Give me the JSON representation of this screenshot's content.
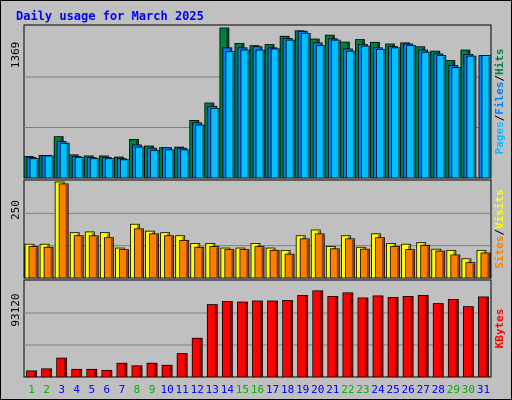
{
  "chart_data": {
    "type": "bar",
    "title": "Daily usage for March 2025",
    "days": [
      "1",
      "2",
      "3",
      "4",
      "5",
      "6",
      "7",
      "8",
      "9",
      "10",
      "11",
      "12",
      "13",
      "14",
      "15",
      "16",
      "17",
      "18",
      "19",
      "20",
      "21",
      "22",
      "23",
      "24",
      "25",
      "26",
      "27",
      "28",
      "29",
      "30",
      "31"
    ],
    "weekend_days": [
      "1",
      "2",
      "8",
      "9",
      "15",
      "16",
      "22",
      "23",
      "29",
      "30"
    ],
    "panels": [
      {
        "id": "hits_files_pages",
        "max_label": "1369",
        "ymax": 1369,
        "side_labels": [
          "Pages",
          "/",
          "Files",
          "/",
          "Hits"
        ],
        "series": [
          {
            "name": "Hits",
            "color": "#008040",
            "values": [
              195,
              205,
              375,
              210,
              200,
              200,
              190,
              350,
              290,
              275,
              280,
              522,
              680,
              1360,
              1220,
              1200,
              1210,
              1285,
              1335,
              1260,
              1295,
              1232,
              1255,
              1230,
              1215,
              1225,
              1190,
              1150,
              1065,
              1160,
              0
            ]
          },
          {
            "name": "Files",
            "color": "#0080ff",
            "values": [
              185,
              205,
              330,
              195,
              185,
              185,
              175,
              300,
              270,
              275,
              270,
              500,
              650,
              1180,
              1180,
              1190,
              1180,
              1265,
              1330,
              1225,
              1262,
              1170,
              1210,
              1180,
              1192,
              1215,
              1160,
              1125,
              1020,
              1120,
              1110
            ]
          },
          {
            "name": "Pages",
            "color": "#00c0ff",
            "values": [
              175,
              200,
              315,
              185,
              175,
              175,
              165,
              280,
              250,
              255,
              255,
              480,
              630,
              1145,
              1160,
              1160,
              1170,
              1250,
              1310,
              1200,
              1250,
              1150,
              1195,
              1165,
              1180,
              1200,
              1140,
              1110,
              1000,
              1105,
              1110
            ]
          }
        ]
      },
      {
        "id": "visits_sites",
        "max_label": "250",
        "ymax": 250,
        "side_labels": [
          "Sites",
          "/",
          "Visits"
        ],
        "series": [
          {
            "name": "Visits",
            "color": "#ffff00",
            "values": [
              88,
              88,
              250,
              118,
              120,
              118,
              78,
              140,
              122,
              118,
              110,
              90,
              90,
              78,
              78,
              90,
              78,
              72,
              110,
              125,
              82,
              110,
              80,
              115,
              90,
              88,
              92,
              75,
              72,
              50,
              72
            ]
          },
          {
            "name": "Sites",
            "color": "#ff8000",
            "values": [
              82,
              80,
              245,
              110,
              110,
              105,
              74,
              128,
              115,
              110,
              98,
              80,
              82,
              74,
              74,
              82,
              72,
              62,
              102,
              115,
              76,
              102,
              75,
              105,
              82,
              74,
              85,
              70,
              60,
              40,
              65
            ]
          }
        ]
      },
      {
        "id": "kbytes",
        "max_label": "93120",
        "ymax": 93120,
        "side_labels": [
          "KBytes"
        ],
        "series": [
          {
            "name": "KBytes",
            "color": "#ff0000",
            "values": [
              6000,
              8000,
              18500,
              7500,
              7500,
              6500,
              13500,
              11000,
              13500,
              11500,
              23000,
              38000,
              71000,
              74000,
              73500,
              74500,
              74500,
              75000,
              80000,
              84500,
              79000,
              82500,
              77500,
              79500,
              78000,
              79000,
              80000,
              72000,
              76000,
              69000,
              78500
            ]
          }
        ]
      }
    ],
    "colors": {
      "background": "#c0c0c0",
      "title": "#0000ff",
      "weekday_label": "#0000ff",
      "weekend_label": "#00b000"
    }
  }
}
